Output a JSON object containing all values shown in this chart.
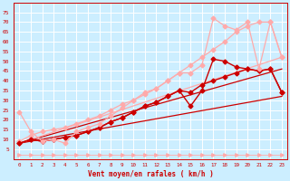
{
  "xlabel": "Vent moyen/en rafales ( km/h )",
  "bg_color": "#cceeff",
  "grid_color": "#ffffff",
  "text_color": "#cc0000",
  "xlim": [
    -0.5,
    23.5
  ],
  "ylim": [
    0,
    80
  ],
  "yticks": [
    5,
    10,
    15,
    20,
    25,
    30,
    35,
    40,
    45,
    50,
    55,
    60,
    65,
    70,
    75
  ],
  "xticks": [
    0,
    1,
    2,
    3,
    4,
    5,
    6,
    7,
    8,
    9,
    10,
    11,
    12,
    13,
    14,
    15,
    16,
    17,
    18,
    19,
    20,
    21,
    22,
    23
  ],
  "series": [
    {
      "x": [
        0,
        23
      ],
      "y": [
        8,
        32
      ],
      "color": "#cc0000",
      "lw": 0.9,
      "marker": null,
      "ms": 0,
      "zorder": 2
    },
    {
      "x": [
        0,
        23
      ],
      "y": [
        8,
        46
      ],
      "color": "#cc0000",
      "lw": 0.9,
      "marker": null,
      "ms": 0,
      "zorder": 2
    },
    {
      "x": [
        0,
        23
      ],
      "y": [
        8,
        52
      ],
      "color": "#ffaaaa",
      "lw": 0.9,
      "marker": null,
      "ms": 0,
      "zorder": 2
    },
    {
      "x": [
        0,
        1,
        2,
        3,
        4,
        5,
        6,
        7,
        8,
        9,
        10,
        11,
        12,
        13,
        14,
        15,
        16,
        17,
        18,
        19,
        20,
        21,
        22,
        23
      ],
      "y": [
        8,
        10,
        9,
        10,
        11,
        12,
        14,
        16,
        19,
        21,
        24,
        27,
        29,
        32,
        35,
        27,
        35,
        51,
        50,
        47,
        46,
        45,
        46,
        34
      ],
      "color": "#cc0000",
      "lw": 1.0,
      "marker": "D",
      "ms": 2.5,
      "zorder": 4
    },
    {
      "x": [
        0,
        1,
        2,
        3,
        4,
        5,
        6,
        7,
        8,
        9,
        10,
        11,
        12,
        13,
        14,
        15,
        16,
        17,
        18,
        19,
        20,
        21,
        22,
        23
      ],
      "y": [
        8,
        10,
        9,
        10,
        11,
        12,
        14,
        16,
        19,
        21,
        24,
        27,
        29,
        32,
        35,
        34,
        38,
        40,
        42,
        44,
        46,
        45,
        46,
        34
      ],
      "color": "#cc0000",
      "lw": 1.0,
      "marker": "D",
      "ms": 2.5,
      "zorder": 3
    },
    {
      "x": [
        0,
        1,
        2,
        3,
        4,
        5,
        6,
        7,
        8,
        9,
        10,
        11,
        12,
        13,
        14,
        15,
        16,
        17,
        18,
        19,
        20,
        21,
        22,
        23
      ],
      "y": [
        24,
        14,
        9,
        10,
        8,
        14,
        16,
        18,
        22,
        26,
        30,
        34,
        36,
        40,
        44,
        44,
        48,
        72,
        68,
        66,
        70,
        46,
        70,
        52
      ],
      "color": "#ffaaaa",
      "lw": 0.9,
      "marker": "D",
      "ms": 2.5,
      "zorder": 4
    },
    {
      "x": [
        0,
        1,
        2,
        3,
        4,
        5,
        6,
        7,
        8,
        9,
        10,
        11,
        12,
        13,
        14,
        15,
        16,
        17,
        18,
        19,
        20,
        21,
        22,
        23
      ],
      "y": [
        9,
        12,
        14,
        15,
        16,
        18,
        20,
        22,
        25,
        28,
        30,
        33,
        36,
        40,
        44,
        48,
        52,
        56,
        60,
        65,
        68,
        70,
        70,
        52
      ],
      "color": "#ffaaaa",
      "lw": 0.9,
      "marker": "D",
      "ms": 2.5,
      "zorder": 3
    },
    {
      "x": [
        0,
        1,
        2,
        3,
        4,
        5,
        6,
        7,
        8,
        9,
        10,
        11,
        12,
        13,
        14,
        15,
        16,
        17,
        18,
        19,
        20,
        21,
        22,
        23
      ],
      "y": [
        2,
        2,
        2,
        2,
        2,
        2,
        2,
        2,
        2,
        2,
        2,
        2,
        2,
        2,
        2,
        2,
        2,
        2,
        2,
        2,
        2,
        2,
        2,
        2
      ],
      "color": "#ffaaaa",
      "lw": 0.6,
      "marker": ">",
      "ms": 2.5,
      "zorder": 2
    }
  ]
}
